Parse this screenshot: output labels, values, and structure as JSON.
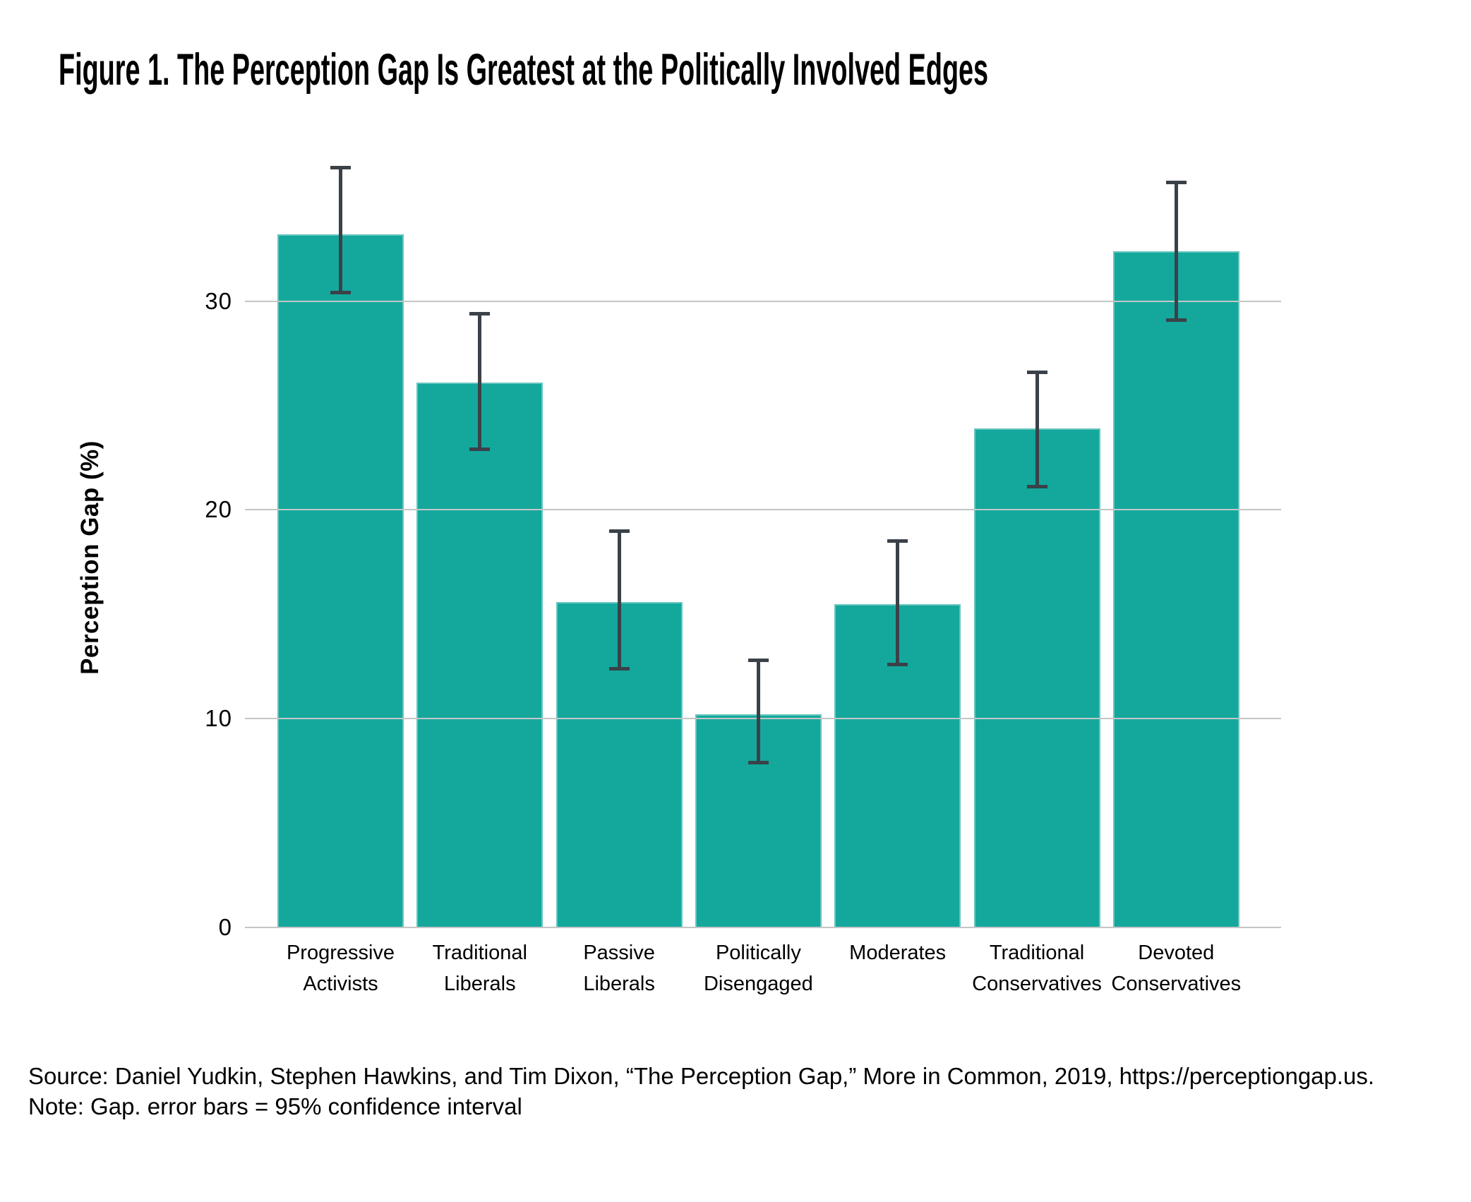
{
  "title": "Figure 1. The Perception Gap Is Greatest at the Politically Involved Edges",
  "footer": {
    "source": "Source: Daniel Yudkin, Stephen Hawkins, and Tim Dixon, “The Perception Gap,” More in Common, 2019, https://perceptiongap.us.",
    "note": "Note: Gap. error bars = 95% confidence interval"
  },
  "colors": {
    "bar": "#14a89d",
    "error_bar": "#3a4148",
    "gridline": "#c4c6c6",
    "text": "#000000",
    "background": "#ffffff"
  },
  "chart_data": {
    "type": "bar",
    "title": "Figure 1. The Perception Gap Is Greatest at the Politically Involved Edges",
    "xlabel": "",
    "ylabel": "Perception Gap (%)",
    "ylim": [
      0,
      38
    ],
    "yticks": [
      0,
      10,
      20,
      30
    ],
    "grid": true,
    "legend": "none",
    "error_bars": "95% confidence interval",
    "categories": [
      "Progressive Activists",
      "Traditional Liberals",
      "Passive Liberals",
      "Politically Disengaged",
      "Moderates",
      "Traditional Conservatives",
      "Devoted Conservatives"
    ],
    "values": [
      33.2,
      26.1,
      15.6,
      10.2,
      15.5,
      23.9,
      32.4
    ],
    "ci_low": [
      30.4,
      22.9,
      12.4,
      7.9,
      12.6,
      21.1,
      29.1
    ],
    "ci_high": [
      36.4,
      29.4,
      19.0,
      12.8,
      18.5,
      26.6,
      35.7
    ]
  }
}
